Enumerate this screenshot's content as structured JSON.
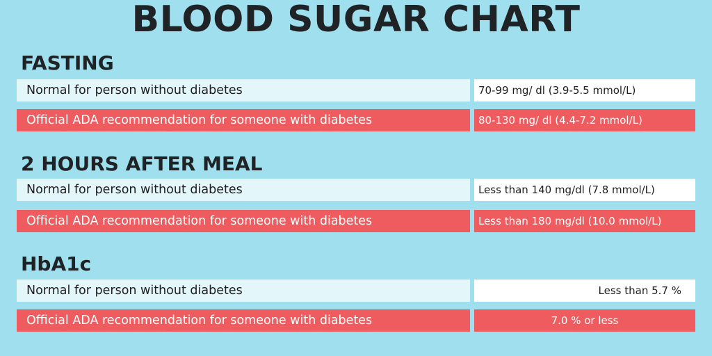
{
  "title": "BLOOD SUGAR CHART",
  "sections": [
    {
      "heading": "FASTING",
      "rows": [
        {
          "label": "Normal for person without diabetes",
          "value": "70-99 mg/ dl (3.9-5.5 mmol/L)"
        },
        {
          "label": "Official ADA recommendation for someone with diabetes",
          "value": "80-130 mg/ dl (4.4-7.2 mmol/L)"
        }
      ]
    },
    {
      "heading": "2 HOURS AFTER MEAL",
      "rows": [
        {
          "label": "Normal for person without diabetes",
          "value": "Less than 140 mg/dl (7.8 mmol/L)"
        },
        {
          "label": "Official ADA recommendation for someone with diabetes",
          "value": "Less than 180 mg/dl (10.0 mmol/L)"
        }
      ]
    },
    {
      "heading": "HbA1c",
      "rows": [
        {
          "label": "Normal for person without diabetes",
          "value": "Less than 5.7 %"
        },
        {
          "label": "Official ADA recommendation for someone with diabetes",
          "value": "7.0 % or less"
        }
      ]
    }
  ],
  "colors": {
    "background": "#9fdfee",
    "normal_row": "#e3f6fa",
    "ada_row": "#ee5c5f",
    "title_text": "#1f2326"
  }
}
